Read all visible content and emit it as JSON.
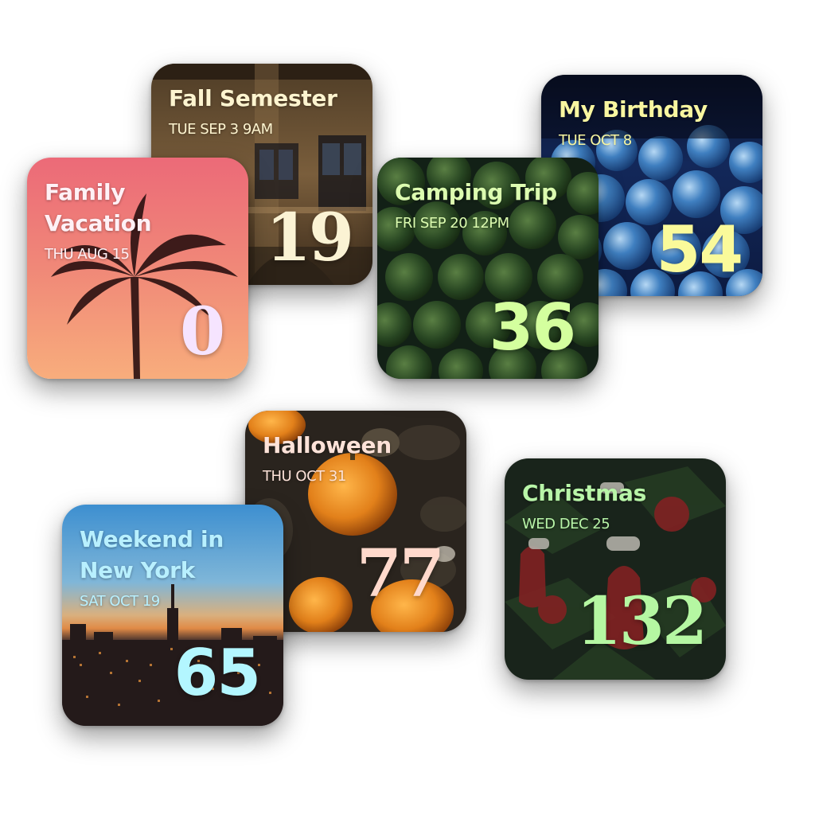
{
  "widgets": [
    {
      "id": "fall-semester",
      "title": "Fall Semester",
      "date": "TUE SEP 3 9AM",
      "count": "19",
      "title_color": "#fdf4cf",
      "count_color": "#fbf3d4"
    },
    {
      "id": "my-birthday",
      "title": "My Birthday",
      "date": "TUE OCT 8",
      "count": "54",
      "title_color": "#f8f6a0",
      "count_color": "#fafa9a"
    },
    {
      "id": "family-vacation",
      "title": "Family\nVacation",
      "date": "THU AUG 15",
      "count": "0",
      "title_color": "#fff1f6",
      "count_color": "#f6e4ff"
    },
    {
      "id": "camping-trip",
      "title": "Camping Trip",
      "date": "FRI SEP 20 12PM",
      "count": "36",
      "title_color": "#dcfcb0",
      "count_color": "#d4ff9e"
    },
    {
      "id": "halloween",
      "title": "Halloween",
      "date": "THU OCT 31",
      "count": "77",
      "title_color": "#fde2d8",
      "count_color": "#ffd9cc"
    },
    {
      "id": "christmas",
      "title": "Christmas",
      "date": "WED DEC 25",
      "count": "132",
      "title_color": "#b8f5a8",
      "count_color": "#b5f7a2"
    },
    {
      "id": "weekend-new-york",
      "title": "Weekend in\nNew York",
      "date": "SAT OCT 19",
      "count": "65",
      "title_color": "#b8f0ff",
      "count_color": "#b3f6ff"
    }
  ]
}
